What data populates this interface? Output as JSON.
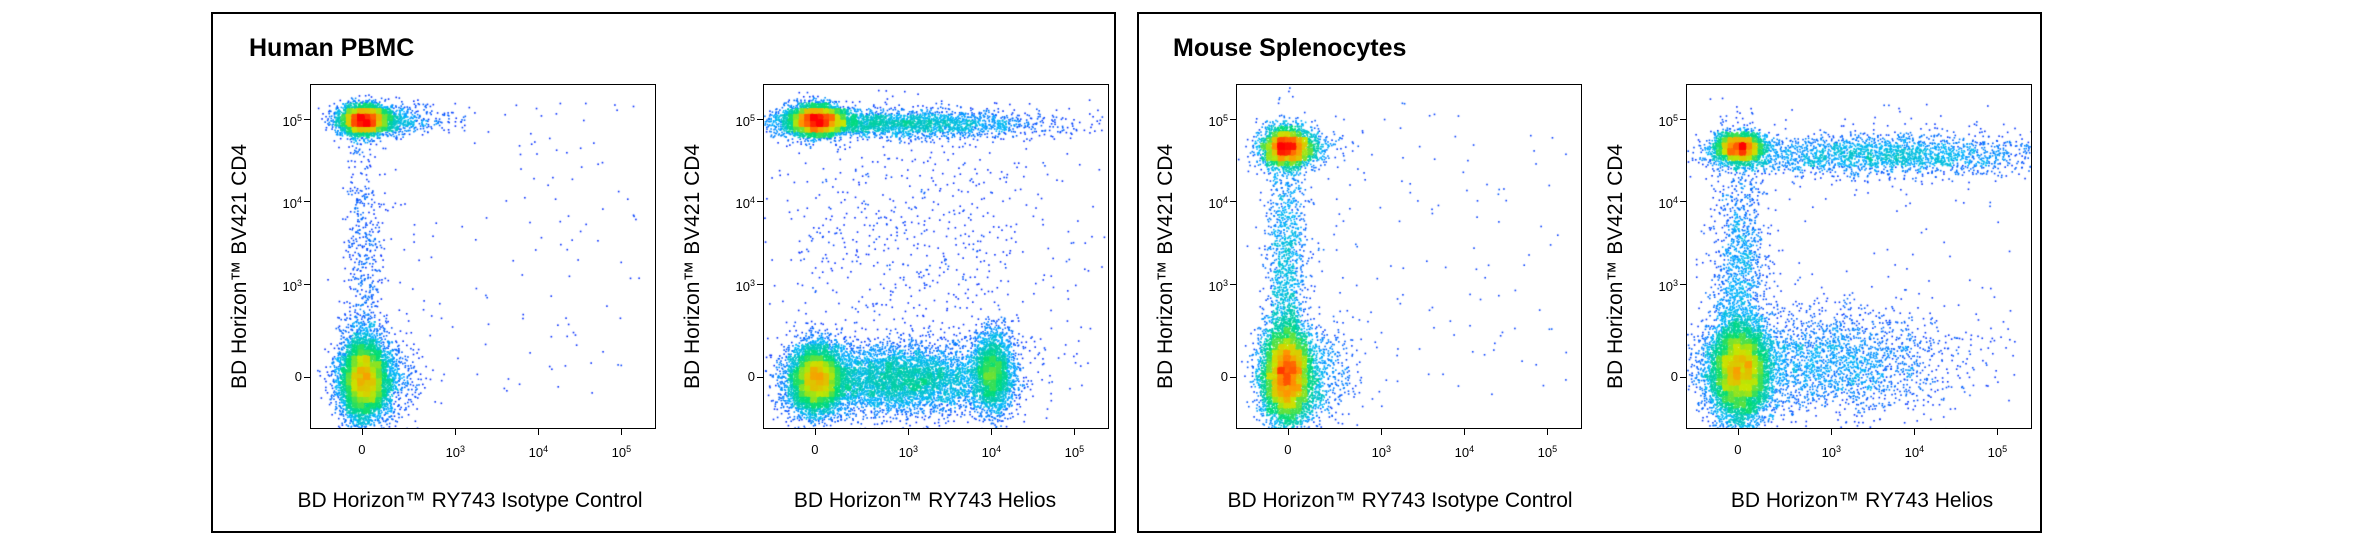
{
  "panels": [
    {
      "title": "Human PBMC"
    },
    {
      "title": "Mouse Splenocytes"
    }
  ],
  "chart_data": [
    {
      "type": "scatter",
      "panel": "Human PBMC",
      "xlabel": "BD Horizon™ RY743 Isotype Control",
      "ylabel": "BD Horizon™ BV421  CD4",
      "x_ticks": [
        "0",
        "10^3",
        "10^4",
        "10^5"
      ],
      "y_ticks": [
        "0",
        "10^3",
        "10^4",
        "10^5"
      ],
      "scale": "biexponential",
      "populations": [
        {
          "x": 0,
          "y": 80000,
          "note": "CD4+ cluster"
        },
        {
          "x": 0,
          "y": 0,
          "note": "CD4- cluster"
        }
      ]
    },
    {
      "type": "scatter",
      "panel": "Human PBMC",
      "xlabel": "BD Horizon™ RY743 Helios",
      "ylabel": "BD Horizon™ BV421  CD4",
      "x_ticks": [
        "0",
        "10^3",
        "10^4",
        "10^5"
      ],
      "y_ticks": [
        "0",
        "10^3",
        "10^4",
        "10^5"
      ],
      "scale": "biexponential",
      "populations": [
        {
          "x": 0,
          "y": 80000,
          "note": "CD4+ Helios- cluster"
        },
        {
          "x": 20000,
          "y": 80000,
          "note": "CD4+ Helios+ tail"
        },
        {
          "x": 0,
          "y": 0,
          "note": "CD4- Helios- cluster"
        },
        {
          "x": 10000,
          "y": 0,
          "note": "CD4- Helios+ cluster"
        }
      ]
    },
    {
      "type": "scatter",
      "panel": "Mouse Splenocytes",
      "xlabel": "BD Horizon™ RY743 Isotype Control",
      "ylabel": "BD Horizon™ BV421  CD4",
      "x_ticks": [
        "0",
        "10^3",
        "10^4",
        "10^5"
      ],
      "y_ticks": [
        "0",
        "10^3",
        "10^4",
        "10^5"
      ],
      "scale": "biexponential",
      "populations": [
        {
          "x": 0,
          "y": 40000,
          "note": "CD4+ cluster"
        },
        {
          "x": 0,
          "y": 0,
          "note": "CD4- cluster"
        }
      ]
    },
    {
      "type": "scatter",
      "panel": "Mouse Splenocytes",
      "xlabel": "BD Horizon™ RY743 Helios",
      "ylabel": "BD Horizon™ BV421  CD4",
      "x_ticks": [
        "0",
        "10^3",
        "10^4",
        "10^5"
      ],
      "y_ticks": [
        "0",
        "10^3",
        "10^4",
        "10^5"
      ],
      "scale": "biexponential",
      "populations": [
        {
          "x": 0,
          "y": 40000,
          "note": "CD4+ Helios- cluster"
        },
        {
          "x": 30000,
          "y": 40000,
          "note": "CD4+ Helios+ tail"
        },
        {
          "x": 0,
          "y": 0,
          "note": "CD4- cluster"
        }
      ]
    }
  ]
}
